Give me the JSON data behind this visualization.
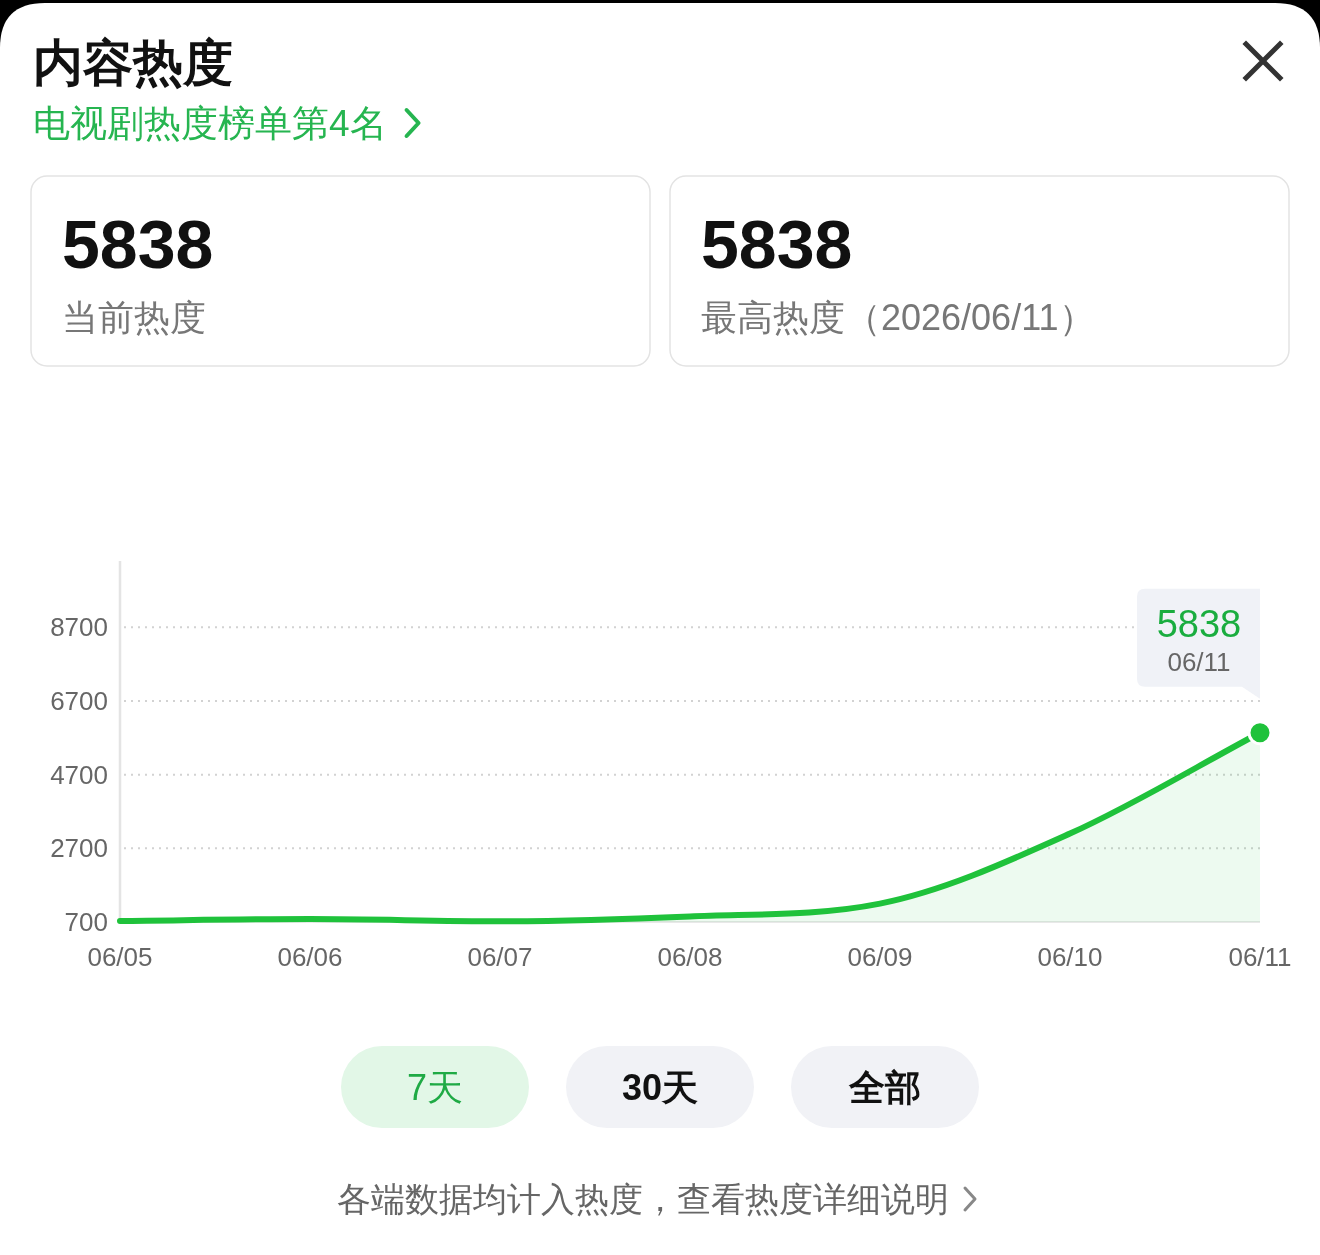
{
  "chart_data": {
    "type": "area",
    "title": "内容热度",
    "subtitle": "电视剧热度榜单第4名",
    "categories": [
      "06/05",
      "06/06",
      "06/07",
      "06/08",
      "06/09",
      "06/10",
      "06/11"
    ],
    "series": [
      {
        "color": "#1fc23b",
        "values": [
          730,
          780,
          720,
          850,
          1200,
          3100,
          5838
        ]
      }
    ],
    "ylim": [
      700,
      10500
    ],
    "yticks": [
      700,
      2700,
      4700,
      6700,
      8700
    ],
    "grid": "y",
    "annotations": [
      {
        "text": "5838",
        "x": "06/11",
        "y": 5838
      },
      "06/11",
      "5838",
      "当前热度",
      "5838",
      "最高热度（2026/06/11）",
      "7天",
      "30天",
      "全部",
      "各端数据均计入热度，查看热度详细说明"
    ]
  }
}
